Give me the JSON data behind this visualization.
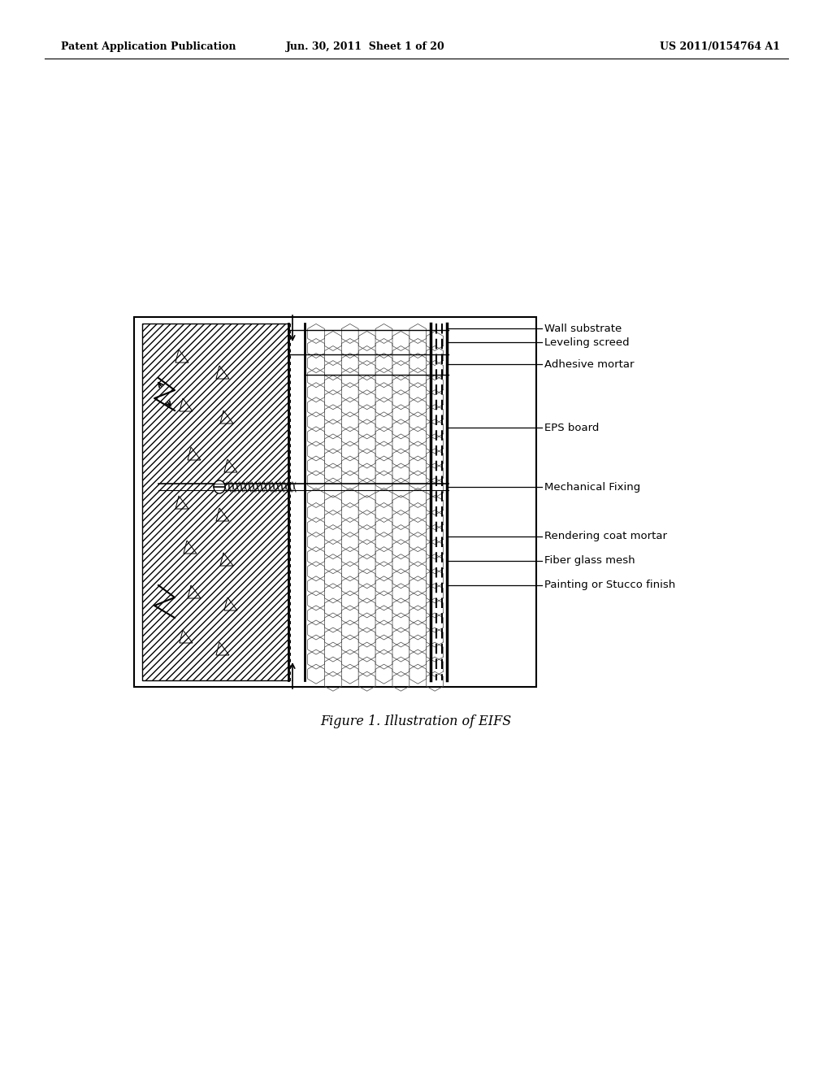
{
  "bg_color": "#ffffff",
  "header_left": "Patent Application Publication",
  "header_center": "Jun. 30, 2011  Sheet 1 of 20",
  "header_right": "US 2011/0154764 A1",
  "caption": "Figure 1. Illustration of EIFS",
  "labels": [
    "Wall substrate",
    "Leveling screed",
    "Adhesive mortar",
    "EPS board",
    "Mechanical Fixing",
    "Rendering coat mortar",
    "Fiber glass mesh",
    "Painting or Stucco finish"
  ]
}
